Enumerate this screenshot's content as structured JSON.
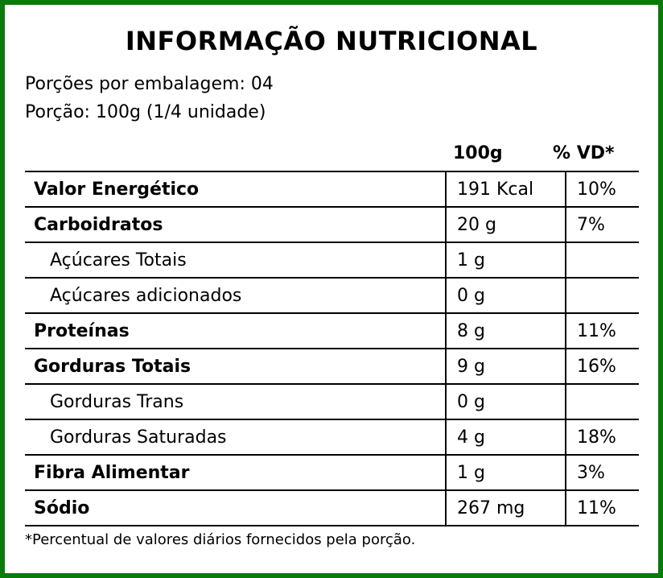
{
  "colors": {
    "border": "#0a7a0a",
    "text": "#000000",
    "background": "#ffffff"
  },
  "title": "INFORMAÇÃO NUTRICIONAL",
  "servings_per_package": "Porções por embalagem: 04",
  "serving_size": "Porção: 100g (1/4 unidade)",
  "columns": {
    "amount": "100g",
    "daily_value": "% VD*"
  },
  "rows": [
    {
      "name": "Valor Energético",
      "amount": "191 Kcal",
      "dv": "10%",
      "bold": true,
      "indent": false
    },
    {
      "name": "Carboidratos",
      "amount": "20 g",
      "dv": "7%",
      "bold": true,
      "indent": false
    },
    {
      "name": "Açúcares Totais",
      "amount": "1 g",
      "dv": "",
      "bold": false,
      "indent": true
    },
    {
      "name": "Açúcares adicionados",
      "amount": "0 g",
      "dv": "",
      "bold": false,
      "indent": true
    },
    {
      "name": "Proteínas",
      "amount": "8 g",
      "dv": "11%",
      "bold": true,
      "indent": false
    },
    {
      "name": "Gorduras Totais",
      "amount": "9 g",
      "dv": "16%",
      "bold": true,
      "indent": false
    },
    {
      "name": "Gorduras Trans",
      "amount": "0 g",
      "dv": "",
      "bold": false,
      "indent": true
    },
    {
      "name": "Gorduras Saturadas",
      "amount": "4 g",
      "dv": "18%",
      "bold": false,
      "indent": true
    },
    {
      "name": "Fibra Alimentar",
      "amount": "1 g",
      "dv": "3%",
      "bold": true,
      "indent": false
    },
    {
      "name": "Sódio",
      "amount": "267 mg",
      "dv": "11%",
      "bold": true,
      "indent": false
    }
  ],
  "footnote": "*Percentual de valores diários fornecidos pela porção."
}
